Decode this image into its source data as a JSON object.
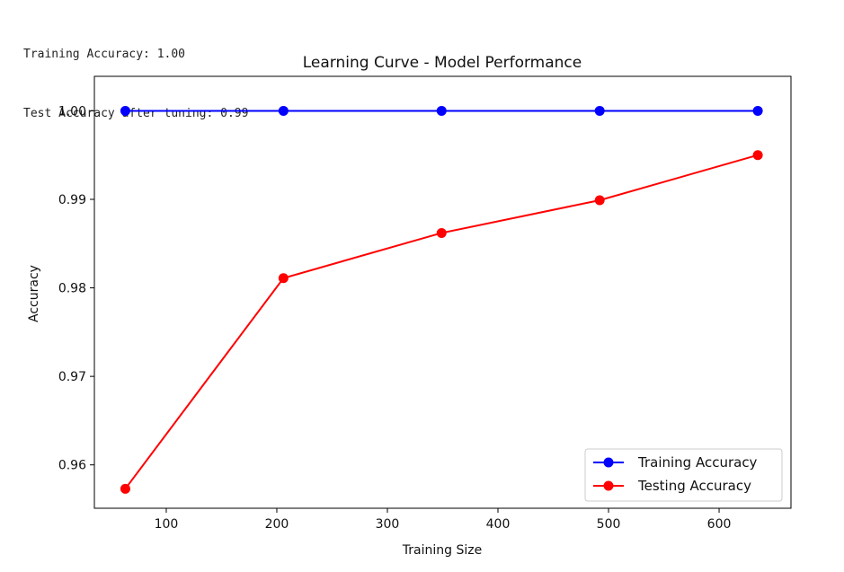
{
  "console": {
    "lines": [
      "Training Accuracy: 1.00",
      "Test Accuracy after tuning: 0.99"
    ]
  },
  "chart_data": {
    "type": "line",
    "title": "Learning Curve - Model Performance",
    "xlabel": "Training Size",
    "ylabel": "Accuracy",
    "xlim": [
      35,
      665
    ],
    "ylim": [
      0.9551,
      1.0039
    ],
    "xticks": [
      100,
      200,
      300,
      400,
      500,
      600
    ],
    "yticks": [
      0.96,
      0.97,
      0.98,
      0.99,
      1.0
    ],
    "ytick_labels": [
      "0.96",
      "0.97",
      "0.98",
      "0.99",
      "1.00"
    ],
    "x": [
      63,
      206,
      349,
      492,
      635
    ],
    "series": [
      {
        "name": "Training Accuracy",
        "color": "#0000ff",
        "marker": "circle",
        "values": [
          1.0,
          1.0,
          1.0,
          1.0,
          1.0
        ]
      },
      {
        "name": "Testing Accuracy",
        "color": "#ff0000",
        "marker": "circle",
        "values": [
          0.9573,
          0.9811,
          0.9862,
          0.9899,
          0.995
        ]
      }
    ],
    "legend_position": "lower-right",
    "grid": false
  }
}
